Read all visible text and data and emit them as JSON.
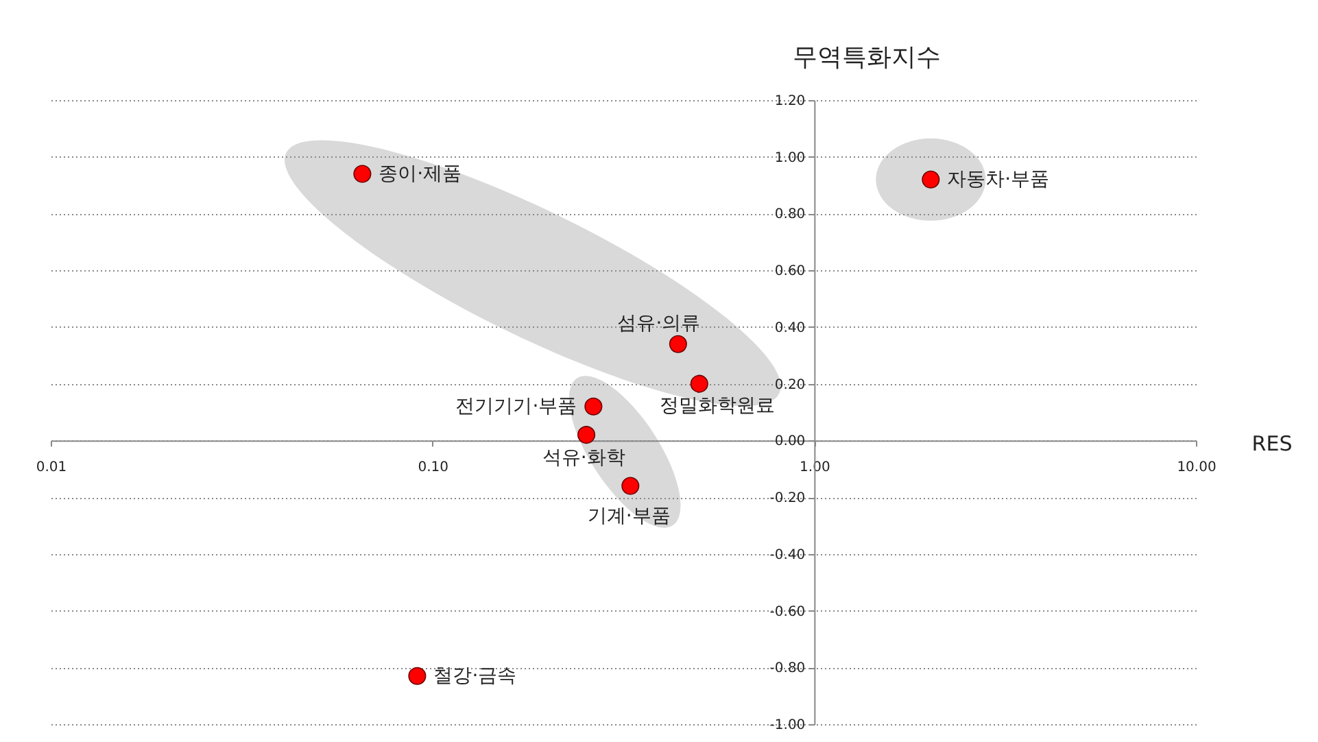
{
  "chart_data": {
    "type": "scatter",
    "ylabel": "무역특화지수",
    "xlabel": "RES",
    "log": "x",
    "x": [
      0.0655,
      2.02,
      0.44,
      0.5,
      0.264,
      0.253,
      0.33,
      0.0912
    ],
    "series": [
      {
        "color": "#ff0000",
        "values": [
          0.94,
          0.92,
          0.34,
          0.2,
          0.12,
          0.02,
          -0.16,
          -0.83
        ]
      }
    ],
    "xlim": [
      0.01,
      10
    ],
    "xticks": [
      {
        "value": 0.01,
        "label": "0.01"
      },
      {
        "value": 0.1,
        "label": "0.10"
      },
      {
        "value": 1,
        "label": "1.00"
      },
      {
        "value": 10,
        "label": "10.00"
      }
    ],
    "ylim": [
      -1,
      1.2
    ],
    "yticks": [
      {
        "value": -1,
        "label": "-1.00"
      },
      {
        "value": -0.8,
        "label": "-0.80"
      },
      {
        "value": -0.6,
        "label": "-0.60"
      },
      {
        "value": -0.4,
        "label": "-0.40"
      },
      {
        "value": -0.2,
        "label": "-0.20"
      },
      {
        "value": 0,
        "label": "0.00"
      },
      {
        "value": 0.2,
        "label": "0.20"
      },
      {
        "value": 0.4,
        "label": "0.40"
      },
      {
        "value": 0.6,
        "label": "0.60"
      },
      {
        "value": 0.8,
        "label": "0.80"
      },
      {
        "value": 1,
        "label": "1.00"
      },
      {
        "value": 1.2,
        "label": "1.20"
      }
    ],
    "grid": "y",
    "marker": "circle",
    "annotations": [
      {
        "text": "종이·제품",
        "x": 0.0655,
        "y": 0.94
      },
      {
        "text": "자동차·부품",
        "x": 2.02,
        "y": 0.92
      },
      {
        "text": "섬유·의류",
        "x": 0.44,
        "y": 0.34
      },
      {
        "text": "정밀화학원료",
        "x": 0.5,
        "y": 0.2
      },
      {
        "text": "전기기기·부품",
        "x": 0.264,
        "y": 0.12
      },
      {
        "text": "석유·화학",
        "x": 0.253,
        "y": 0.02
      },
      {
        "text": "기계·부품",
        "x": 0.33,
        "y": -0.16
      },
      {
        "text": "철강·금속",
        "x": 0.0912,
        "y": -0.83
      }
    ]
  }
}
